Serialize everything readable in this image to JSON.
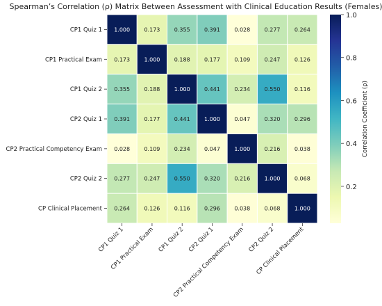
{
  "chart_data": {
    "type": "heatmap",
    "title": "Spearman’s Correlation (ρ) Matrix Between Assessment with Clinical Education Results (Females)",
    "row_labels": [
      "CP1 Quiz 1",
      "CP1 Practical Exam",
      "CP1 Quiz 2",
      "CP2 Quiz 1",
      "CP2 Practical Competency Exam",
      "CP2 Quiz 2",
      "CP Clinical Placement"
    ],
    "col_labels": [
      "CP1 Quiz 1",
      "CP1 Practical Exam",
      "CP1 Quiz 2",
      "CP2 Quiz 1",
      "CP2 Practical Competency Exam",
      "CP2 Quiz 2",
      "CP Clinical Placement"
    ],
    "values": [
      [
        1.0,
        0.173,
        0.355,
        0.391,
        0.028,
        0.277,
        0.264
      ],
      [
        0.173,
        1.0,
        0.188,
        0.177,
        0.109,
        0.247,
        0.126
      ],
      [
        0.355,
        0.188,
        1.0,
        0.441,
        0.234,
        0.55,
        0.116
      ],
      [
        0.391,
        0.177,
        0.441,
        1.0,
        0.047,
        0.32,
        0.296
      ],
      [
        0.028,
        0.109,
        0.234,
        0.047,
        1.0,
        0.216,
        0.038
      ],
      [
        0.277,
        0.247,
        0.55,
        0.32,
        0.216,
        1.0,
        0.068
      ],
      [
        0.264,
        0.126,
        0.116,
        0.296,
        0.038,
        0.068,
        1.0
      ]
    ],
    "value_labels": [
      [
        "1.000",
        "0.173",
        "0.355",
        "0.391",
        "0.028",
        "0.277",
        "0.264"
      ],
      [
        "0.173",
        "1.000",
        "0.188",
        "0.177",
        "0.109",
        "0.247",
        "0.126"
      ],
      [
        "0.355",
        "0.188",
        "1.000",
        "0.441",
        "0.234",
        "0.550",
        "0.116"
      ],
      [
        "0.391",
        "0.177",
        "0.441",
        "1.000",
        "0.047",
        "0.320",
        "0.296"
      ],
      [
        "0.028",
        "0.109",
        "0.234",
        "0.047",
        "1.000",
        "0.216",
        "0.038"
      ],
      [
        "0.277",
        "0.247",
        "0.550",
        "0.320",
        "0.216",
        "1.000",
        "0.068"
      ],
      [
        "0.264",
        "0.126",
        "0.116",
        "0.296",
        "0.038",
        "0.068",
        "1.000"
      ]
    ],
    "colorbar": {
      "label": "Correlation Coefficient (ρ)",
      "range": [
        0.028,
        1.0
      ],
      "ticks": [
        0.2,
        0.4,
        0.6,
        0.8,
        1.0
      ],
      "tick_labels": [
        "0.2",
        "0.4",
        "0.6",
        "0.8",
        "1.0"
      ],
      "colormap": "YlGnBu"
    },
    "grid": true,
    "legend": "right"
  }
}
